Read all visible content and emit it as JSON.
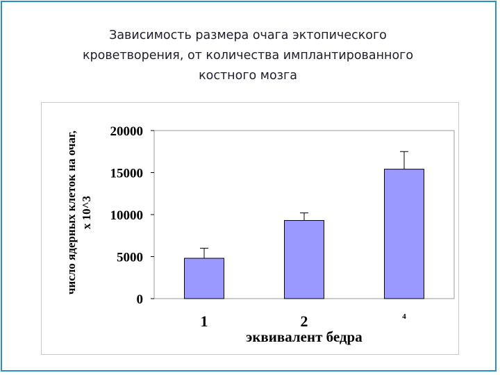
{
  "title_lines": [
    "Зависимость размера очага эктопического",
    "кроветворения, от количества имплантированного",
    "костного мозга"
  ],
  "chart_data": {
    "type": "bar",
    "categories": [
      "1",
      "2",
      "4"
    ],
    "values": [
      4800,
      9300,
      15400
    ],
    "errors": [
      1200,
      900,
      2100
    ],
    "xlabel": "эквивалент бедра",
    "ylabel_lines": [
      "число ядерных клеток на очаг,",
      "x 10^3"
    ],
    "yticks": [
      0,
      5000,
      10000,
      15000,
      20000
    ],
    "ylim": [
      0,
      20000
    ],
    "bar_color": "#9999ff",
    "grid": false,
    "legend": "none"
  }
}
